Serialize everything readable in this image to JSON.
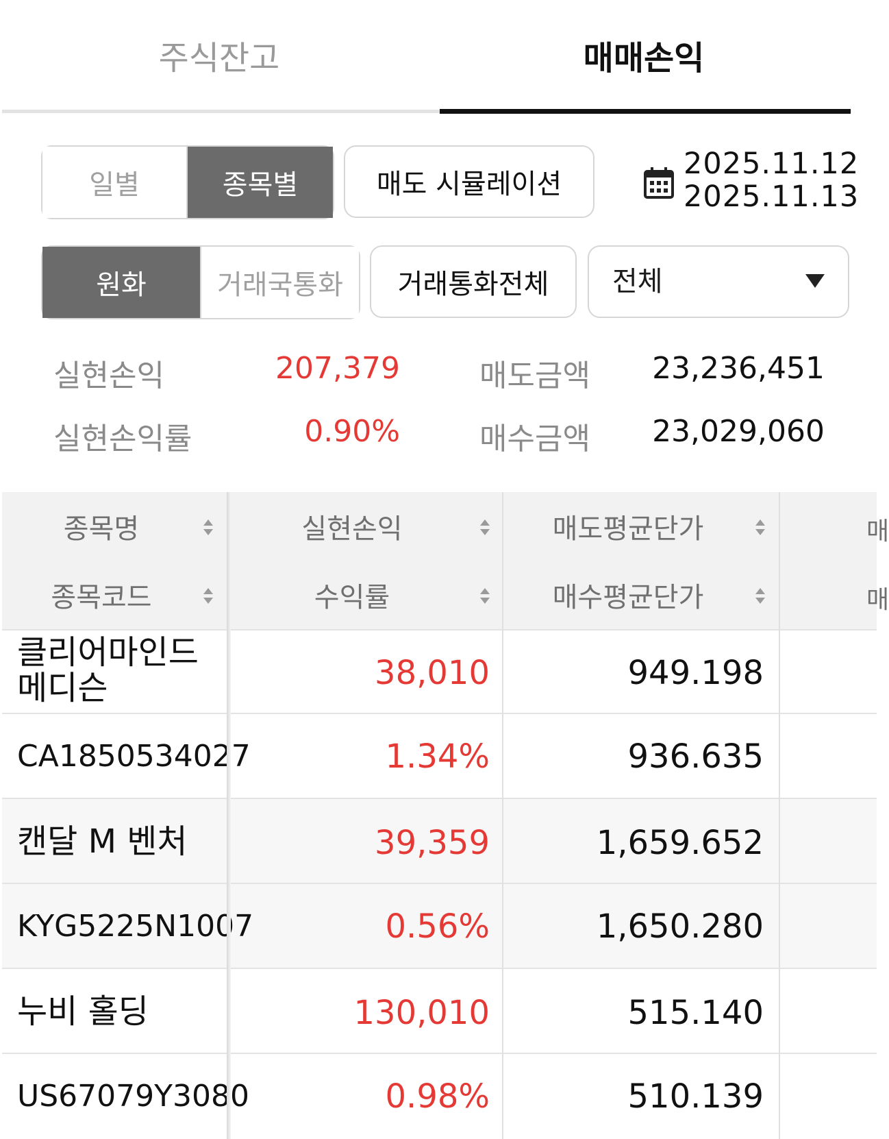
{
  "tabs": [
    {
      "label": "주식잔고",
      "active": false
    },
    {
      "label": "매매손익",
      "active": true
    }
  ],
  "period_toggle": {
    "options": [
      "일별",
      "종목별"
    ],
    "selected": "종목별"
  },
  "sell_simulation_button": "매도 시뮬레이션",
  "date_range": {
    "start": "2025.11.12",
    "end": "2025.11.13",
    "icon": "calendar-icon"
  },
  "currency_toggle": {
    "options": [
      "원화",
      "거래국통화"
    ],
    "selected": "원화"
  },
  "currency_all_button": "거래통화전체",
  "filter_dropdown": {
    "selected": "전체",
    "icon": "caret-down-icon"
  },
  "summary": {
    "realized_pl_label": "실현손익",
    "realized_pl_value": "207,379",
    "realized_pl_rate_label": "실현손익률",
    "realized_pl_rate_value": "0.90%",
    "sell_amount_label": "매도금액",
    "sell_amount_value": "23,236,451",
    "buy_amount_label": "매수금액",
    "buy_amount_value": "23,029,060"
  },
  "table": {
    "header_row1": [
      "종목명",
      "실현손익",
      "매도평균단가",
      "매"
    ],
    "header_row2": [
      "종목코드",
      "수익률",
      "매수평균단가",
      "매"
    ],
    "rows": [
      {
        "name": "클리어마인드 메디슨",
        "name_line1": "클리어마인드",
        "name_line2": "메디슨",
        "code": "CA1850534027",
        "realized_pl": "38,010",
        "return_rate": "1.34%",
        "avg_sell_price": "949.198",
        "avg_buy_price": "936.635"
      },
      {
        "name": "캔달 M 벤처",
        "code": "KYG5225N1007",
        "realized_pl": "39,359",
        "return_rate": "0.56%",
        "avg_sell_price": "1,659.652",
        "avg_buy_price": "1,650.280"
      },
      {
        "name": "누비 홀딩",
        "code": "US67079Y3080",
        "realized_pl": "130,010",
        "return_rate": "0.98%",
        "avg_sell_price": "515.140",
        "avg_buy_price": "510.139"
      }
    ]
  },
  "colors": {
    "accent_red": "#e53935",
    "active_toggle_bg": "#6b6b6b",
    "header_bg": "#f2f2f2"
  }
}
